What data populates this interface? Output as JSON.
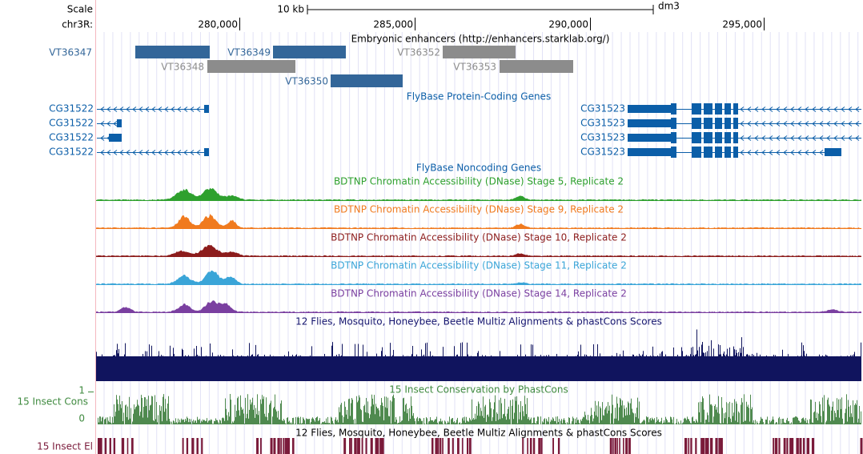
{
  "ruler": {
    "scale_label": "Scale",
    "chrom_label": "chr3R:",
    "scale_bar": "10 kb",
    "assembly": "dm3",
    "positions": [
      "280,000",
      "285,000",
      "290,000",
      "295,000"
    ]
  },
  "enhancers": {
    "title": "Embryonic enhancers (http://enhancers.starklab.org/)",
    "items": [
      "VT36347",
      "VT36348",
      "VT36349",
      "VT36350",
      "VT36352",
      "VT36353"
    ]
  },
  "coding_genes": {
    "title": "FlyBase Protein-Coding Genes",
    "left": [
      "CG31522",
      "CG31522",
      "CG31522",
      "CG31522"
    ],
    "right": [
      "CG31523",
      "CG31523",
      "CG31523",
      "CG31523"
    ]
  },
  "noncoding_genes": {
    "title": "FlyBase Noncoding Genes"
  },
  "dnase_tracks": [
    "BDTNP Chromatin Accessibility (DNase) Stage 5, Replicate 2",
    "BDTNP Chromatin Accessibility (DNase) Stage 9, Replicate 2",
    "BDTNP Chromatin Accessibility (DNase) Stage 10, Replicate 2",
    "BDTNP Chromatin Accessibility (DNase) Stage 11, Replicate 2",
    "BDTNP Chromatin Accessibility (DNase) Stage 14, Replicate 2"
  ],
  "multiz": {
    "title": "12 Flies, Mosquito, Honeybee, Beetle Multiz Alignments & phastCons Scores"
  },
  "insect_cons": {
    "title": "15 Insect Conservation by PhastCons",
    "label": "15 Insect Cons",
    "axis_max": "1",
    "axis_min": "0"
  },
  "insect_el": {
    "title": "12 Flies, Mosquito, Honeybee, Beetle Multiz Alignments & phastCons Scores",
    "label": "15 Insect El"
  }
}
